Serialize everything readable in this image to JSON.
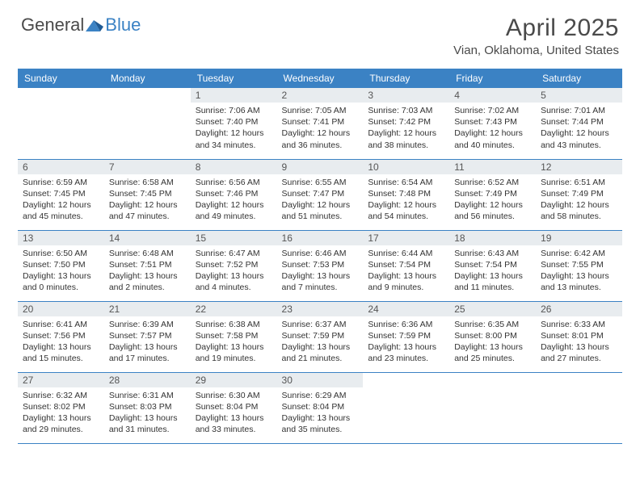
{
  "logo": {
    "text1": "General",
    "text2": "Blue"
  },
  "title": "April 2025",
  "location": "Vian, Oklahoma, United States",
  "colors": {
    "header_bg": "#3b82c4",
    "header_text": "#ffffff",
    "daynum_bg": "#e8ecef",
    "border": "#3b82c4",
    "text": "#333333",
    "logo_blue": "#3b82c4",
    "logo_gray": "#4a4a4a"
  },
  "day_headers": [
    "Sunday",
    "Monday",
    "Tuesday",
    "Wednesday",
    "Thursday",
    "Friday",
    "Saturday"
  ],
  "weeks": [
    [
      {
        "n": ""
      },
      {
        "n": ""
      },
      {
        "n": "1",
        "sr": "7:06 AM",
        "ss": "7:40 PM",
        "dl": "12 hours and 34 minutes."
      },
      {
        "n": "2",
        "sr": "7:05 AM",
        "ss": "7:41 PM",
        "dl": "12 hours and 36 minutes."
      },
      {
        "n": "3",
        "sr": "7:03 AM",
        "ss": "7:42 PM",
        "dl": "12 hours and 38 minutes."
      },
      {
        "n": "4",
        "sr": "7:02 AM",
        "ss": "7:43 PM",
        "dl": "12 hours and 40 minutes."
      },
      {
        "n": "5",
        "sr": "7:01 AM",
        "ss": "7:44 PM",
        "dl": "12 hours and 43 minutes."
      }
    ],
    [
      {
        "n": "6",
        "sr": "6:59 AM",
        "ss": "7:45 PM",
        "dl": "12 hours and 45 minutes."
      },
      {
        "n": "7",
        "sr": "6:58 AM",
        "ss": "7:45 PM",
        "dl": "12 hours and 47 minutes."
      },
      {
        "n": "8",
        "sr": "6:56 AM",
        "ss": "7:46 PM",
        "dl": "12 hours and 49 minutes."
      },
      {
        "n": "9",
        "sr": "6:55 AM",
        "ss": "7:47 PM",
        "dl": "12 hours and 51 minutes."
      },
      {
        "n": "10",
        "sr": "6:54 AM",
        "ss": "7:48 PM",
        "dl": "12 hours and 54 minutes."
      },
      {
        "n": "11",
        "sr": "6:52 AM",
        "ss": "7:49 PM",
        "dl": "12 hours and 56 minutes."
      },
      {
        "n": "12",
        "sr": "6:51 AM",
        "ss": "7:49 PM",
        "dl": "12 hours and 58 minutes."
      }
    ],
    [
      {
        "n": "13",
        "sr": "6:50 AM",
        "ss": "7:50 PM",
        "dl": "13 hours and 0 minutes."
      },
      {
        "n": "14",
        "sr": "6:48 AM",
        "ss": "7:51 PM",
        "dl": "13 hours and 2 minutes."
      },
      {
        "n": "15",
        "sr": "6:47 AM",
        "ss": "7:52 PM",
        "dl": "13 hours and 4 minutes."
      },
      {
        "n": "16",
        "sr": "6:46 AM",
        "ss": "7:53 PM",
        "dl": "13 hours and 7 minutes."
      },
      {
        "n": "17",
        "sr": "6:44 AM",
        "ss": "7:54 PM",
        "dl": "13 hours and 9 minutes."
      },
      {
        "n": "18",
        "sr": "6:43 AM",
        "ss": "7:54 PM",
        "dl": "13 hours and 11 minutes."
      },
      {
        "n": "19",
        "sr": "6:42 AM",
        "ss": "7:55 PM",
        "dl": "13 hours and 13 minutes."
      }
    ],
    [
      {
        "n": "20",
        "sr": "6:41 AM",
        "ss": "7:56 PM",
        "dl": "13 hours and 15 minutes."
      },
      {
        "n": "21",
        "sr": "6:39 AM",
        "ss": "7:57 PM",
        "dl": "13 hours and 17 minutes."
      },
      {
        "n": "22",
        "sr": "6:38 AM",
        "ss": "7:58 PM",
        "dl": "13 hours and 19 minutes."
      },
      {
        "n": "23",
        "sr": "6:37 AM",
        "ss": "7:59 PM",
        "dl": "13 hours and 21 minutes."
      },
      {
        "n": "24",
        "sr": "6:36 AM",
        "ss": "7:59 PM",
        "dl": "13 hours and 23 minutes."
      },
      {
        "n": "25",
        "sr": "6:35 AM",
        "ss": "8:00 PM",
        "dl": "13 hours and 25 minutes."
      },
      {
        "n": "26",
        "sr": "6:33 AM",
        "ss": "8:01 PM",
        "dl": "13 hours and 27 minutes."
      }
    ],
    [
      {
        "n": "27",
        "sr": "6:32 AM",
        "ss": "8:02 PM",
        "dl": "13 hours and 29 minutes."
      },
      {
        "n": "28",
        "sr": "6:31 AM",
        "ss": "8:03 PM",
        "dl": "13 hours and 31 minutes."
      },
      {
        "n": "29",
        "sr": "6:30 AM",
        "ss": "8:04 PM",
        "dl": "13 hours and 33 minutes."
      },
      {
        "n": "30",
        "sr": "6:29 AM",
        "ss": "8:04 PM",
        "dl": "13 hours and 35 minutes."
      },
      {
        "n": ""
      },
      {
        "n": ""
      },
      {
        "n": ""
      }
    ]
  ],
  "labels": {
    "sunrise": "Sunrise: ",
    "sunset": "Sunset: ",
    "daylight": "Daylight: "
  }
}
